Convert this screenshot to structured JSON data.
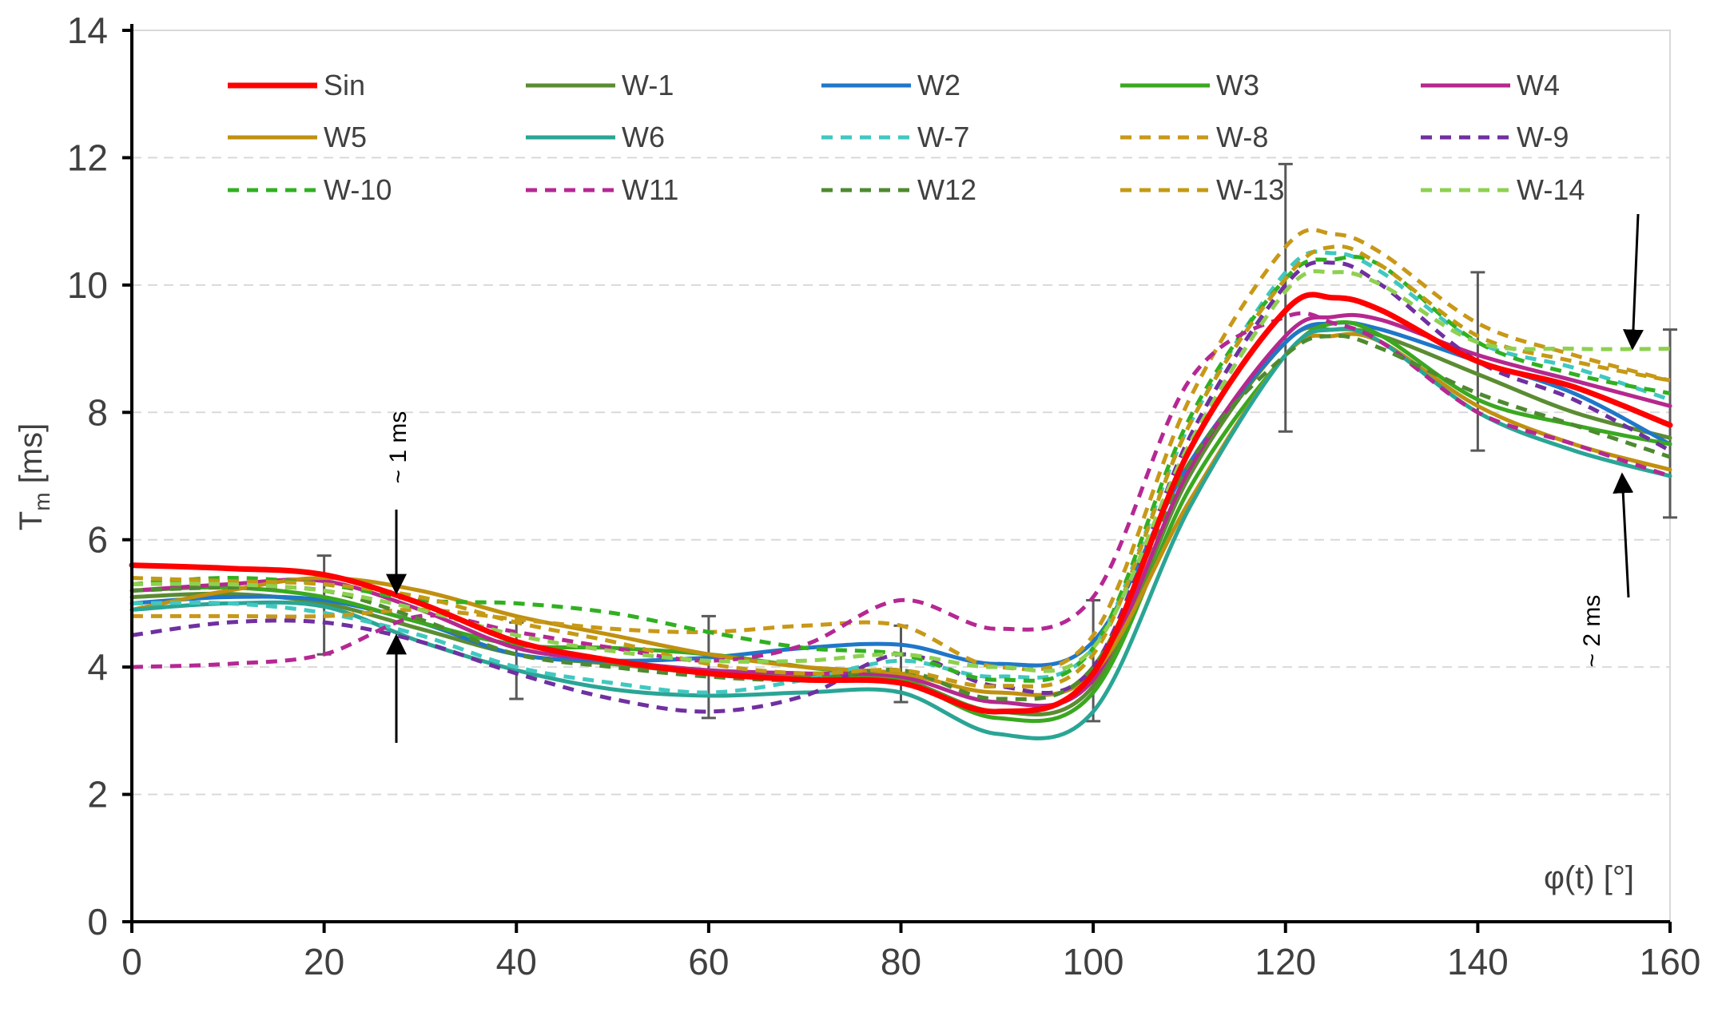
{
  "chart_data": {
    "type": "line",
    "title": "",
    "xlabel": "φ(t) [°]",
    "ylabel": "T",
    "ylabel_sub": "m",
    "ylabel_unit": " [ms]",
    "xlim": [
      0,
      160
    ],
    "ylim": [
      0,
      14
    ],
    "xticks": [
      0,
      20,
      40,
      60,
      80,
      100,
      120,
      140,
      160
    ],
    "yticks": [
      0,
      2,
      4,
      6,
      8,
      10,
      12,
      14
    ],
    "grid": "horizontal dashed",
    "legend_position": "top",
    "x": [
      0,
      10,
      20,
      30,
      40,
      50,
      60,
      70,
      80,
      90,
      100,
      110,
      120,
      125,
      130,
      140,
      150,
      160
    ],
    "series": [
      {
        "name": "Sin",
        "color": "#ff0000",
        "dash": false,
        "width": 7,
        "values": [
          5.6,
          5.55,
          5.45,
          5.0,
          4.4,
          4.1,
          3.9,
          3.8,
          3.75,
          3.3,
          3.9,
          7.4,
          9.6,
          9.8,
          9.6,
          8.8,
          8.4,
          7.8
        ]
      },
      {
        "name": "W-1",
        "color": "#5b8c32",
        "dash": false,
        "width": 5,
        "values": [
          5.1,
          5.15,
          5.0,
          4.6,
          4.2,
          4.05,
          3.9,
          3.85,
          3.8,
          3.3,
          3.7,
          7.0,
          9.1,
          9.3,
          9.2,
          8.6,
          8.0,
          7.6
        ]
      },
      {
        "name": "W2",
        "color": "#1f77c8",
        "dash": false,
        "width": 5,
        "values": [
          5.0,
          5.1,
          5.05,
          4.7,
          4.2,
          4.1,
          4.15,
          4.3,
          4.35,
          4.05,
          4.4,
          7.2,
          9.1,
          9.4,
          9.3,
          8.8,
          8.3,
          7.5
        ]
      },
      {
        "name": "W3",
        "color": "#3aa820",
        "dash": false,
        "width": 5,
        "values": [
          5.2,
          5.25,
          5.1,
          4.7,
          4.35,
          4.3,
          4.2,
          4.0,
          3.8,
          3.2,
          3.6,
          6.8,
          8.9,
          9.4,
          9.2,
          8.2,
          7.8,
          7.5
        ]
      },
      {
        "name": "W4",
        "color": "#b5288e",
        "dash": false,
        "width": 5,
        "values": [
          5.2,
          5.3,
          5.35,
          4.9,
          4.3,
          4.1,
          3.95,
          3.9,
          3.85,
          3.45,
          3.8,
          7.1,
          9.2,
          9.5,
          9.45,
          8.9,
          8.5,
          8.1
        ]
      },
      {
        "name": "W5",
        "color": "#c09010",
        "dash": false,
        "width": 5,
        "values": [
          4.9,
          5.2,
          5.4,
          5.2,
          4.8,
          4.5,
          4.2,
          4.0,
          3.9,
          3.6,
          3.9,
          6.6,
          8.9,
          9.2,
          9.1,
          8.1,
          7.5,
          7.1
        ]
      },
      {
        "name": "W6",
        "color": "#2aa595",
        "dash": false,
        "width": 5,
        "values": [
          4.9,
          5.0,
          4.95,
          4.4,
          3.95,
          3.65,
          3.55,
          3.6,
          3.6,
          2.95,
          3.3,
          6.5,
          8.9,
          9.3,
          9.1,
          8.0,
          7.4,
          7.0
        ]
      },
      {
        "name": "W-7",
        "color": "#40c8c0",
        "dash": true,
        "width": 5,
        "values": [
          5.0,
          5.0,
          4.85,
          4.5,
          4.0,
          3.75,
          3.6,
          3.8,
          4.1,
          3.85,
          4.3,
          7.8,
          10.2,
          10.5,
          10.2,
          9.1,
          8.7,
          8.2
        ]
      },
      {
        "name": "W-8",
        "color": "#c89818",
        "dash": true,
        "width": 5,
        "values": [
          4.8,
          4.8,
          4.8,
          4.9,
          4.75,
          4.6,
          4.55,
          4.65,
          4.65,
          4.0,
          4.5,
          8.2,
          10.6,
          10.8,
          10.5,
          9.4,
          8.9,
          8.5
        ]
      },
      {
        "name": "W-9",
        "color": "#7030a0",
        "dash": true,
        "width": 5,
        "values": [
          4.5,
          4.7,
          4.7,
          4.4,
          3.9,
          3.5,
          3.3,
          3.55,
          4.2,
          3.7,
          4.0,
          7.6,
          10.0,
          10.35,
          10.0,
          8.8,
          8.2,
          7.4
        ]
      },
      {
        "name": "W-10",
        "color": "#30b020",
        "dash": true,
        "width": 5,
        "values": [
          5.3,
          5.4,
          5.3,
          5.05,
          5.0,
          4.85,
          4.55,
          4.3,
          4.2,
          3.8,
          4.3,
          7.9,
          10.1,
          10.4,
          10.3,
          9.1,
          8.6,
          8.3
        ]
      },
      {
        "name": "W11",
        "color": "#b52893",
        "dash": true,
        "width": 5,
        "values": [
          4.0,
          4.05,
          4.2,
          4.8,
          4.55,
          4.3,
          4.1,
          4.35,
          5.05,
          4.6,
          5.1,
          8.5,
          9.5,
          9.4,
          9.1,
          8.0,
          7.5,
          7.0
        ]
      },
      {
        "name": "W12",
        "color": "#4e8a30",
        "dash": true,
        "width": 5,
        "values": [
          5.2,
          5.25,
          5.2,
          4.75,
          4.2,
          4.0,
          3.85,
          3.8,
          3.95,
          3.5,
          4.0,
          7.2,
          8.9,
          9.2,
          9.0,
          8.3,
          7.8,
          7.3
        ]
      },
      {
        "name": "W-13",
        "color": "#c49a14",
        "dash": true,
        "width": 5,
        "values": [
          5.4,
          5.35,
          5.3,
          5.1,
          4.7,
          4.4,
          4.05,
          3.9,
          3.95,
          3.7,
          4.2,
          7.8,
          10.1,
          10.6,
          10.3,
          9.2,
          8.8,
          8.5
        ]
      },
      {
        "name": "W-14",
        "color": "#8ed050",
        "dash": true,
        "width": 5,
        "values": [
          5.3,
          5.3,
          5.2,
          4.9,
          4.5,
          4.25,
          4.1,
          4.1,
          4.2,
          4.0,
          4.3,
          7.5,
          9.9,
          10.2,
          10.0,
          9.1,
          9.0,
          9.0
        ]
      }
    ],
    "error_bars": [
      {
        "x": 20,
        "low": 4.2,
        "high": 5.75
      },
      {
        "x": 40,
        "low": 3.5,
        "high": 4.7
      },
      {
        "x": 60,
        "low": 3.2,
        "high": 4.8
      },
      {
        "x": 80,
        "low": 3.45,
        "high": 4.65
      },
      {
        "x": 100,
        "low": 3.15,
        "high": 5.05
      },
      {
        "x": 120,
        "low": 7.7,
        "high": 11.9
      },
      {
        "x": 140,
        "low": 7.4,
        "high": 10.2
      },
      {
        "x": 160,
        "low": 6.35,
        "high": 9.3
      }
    ],
    "annotations": [
      {
        "id": "annot-1ms",
        "text": "~ 1 ms"
      },
      {
        "id": "annot-2ms",
        "text": "~ 2 ms"
      }
    ]
  }
}
